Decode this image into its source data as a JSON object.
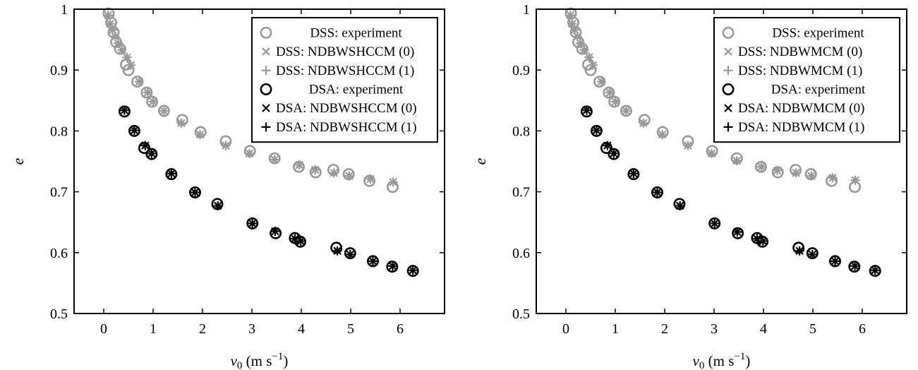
{
  "chart_data": [
    {
      "type": "scatter",
      "xlabel": "v",
      "xlabel_sub": "0",
      "xlabel_unit_open": " (m s",
      "xlabel_unit_sup": "−1",
      "xlabel_unit_close": ")",
      "ylabel": "e",
      "xlim": [
        -0.6,
        6.9
      ],
      "ylim": [
        0.5,
        1.0
      ],
      "xticks": [
        0,
        1,
        2,
        3,
        4,
        5,
        6
      ],
      "yticks": [
        0.5,
        0.6,
        0.7,
        0.8,
        0.9,
        1.0
      ],
      "xtick_labels": [
        "0",
        "1",
        "2",
        "3",
        "4",
        "5",
        "6"
      ],
      "ytick_labels": [
        "0.5",
        "0.6",
        "0.7",
        "0.8",
        "0.9",
        "1"
      ],
      "grid": false,
      "legend_position": "top-right",
      "series": [
        {
          "name": "DSS: experiment",
          "marker": "circle",
          "color": "#999999",
          "x": [
            0.1,
            0.15,
            0.2,
            0.25,
            0.33,
            0.45,
            0.5,
            0.68,
            0.87,
            0.98,
            1.22,
            1.59,
            1.96,
            2.47,
            2.96,
            3.46,
            3.95,
            4.29,
            4.65,
            4.96,
            5.38,
            5.85
          ],
          "y": [
            0.993,
            0.978,
            0.962,
            0.946,
            0.935,
            0.909,
            0.9,
            0.881,
            0.863,
            0.848,
            0.833,
            0.818,
            0.798,
            0.783,
            0.767,
            0.755,
            0.741,
            0.732,
            0.736,
            0.729,
            0.718,
            0.708
          ]
        },
        {
          "name": "DSS: NDBWSHCCM (0)",
          "marker": "x",
          "color": "#999999",
          "x": [
            0.09,
            0.13,
            0.18,
            0.23,
            0.29,
            0.37,
            0.47,
            0.55,
            0.72,
            0.89,
            1.0,
            1.22,
            1.57,
            1.95,
            2.47,
            2.95,
            3.46,
            3.96,
            4.28,
            4.66,
            4.97,
            5.4,
            5.86
          ],
          "y": [
            0.99,
            0.976,
            0.966,
            0.955,
            0.944,
            0.933,
            0.921,
            0.908,
            0.881,
            0.863,
            0.848,
            0.833,
            0.813,
            0.794,
            0.776,
            0.763,
            0.753,
            0.744,
            0.736,
            0.731,
            0.726,
            0.721,
            0.716
          ]
        },
        {
          "name": "DSS: NDBWSHCCM (1)",
          "marker": "plus",
          "color": "#999999",
          "x": [
            0.09,
            0.13,
            0.18,
            0.23,
            0.29,
            0.37,
            0.47,
            0.55,
            0.72,
            0.89,
            1.0,
            1.22,
            1.57,
            1.95,
            2.47,
            2.95,
            3.46,
            3.96,
            4.28,
            4.66,
            4.97,
            5.4,
            5.86
          ],
          "y": [
            0.99,
            0.976,
            0.966,
            0.955,
            0.944,
            0.933,
            0.921,
            0.908,
            0.881,
            0.863,
            0.848,
            0.833,
            0.813,
            0.794,
            0.776,
            0.763,
            0.753,
            0.744,
            0.736,
            0.731,
            0.726,
            0.721,
            0.716
          ]
        },
        {
          "name": "DSA: experiment",
          "marker": "circle",
          "color": "#000000",
          "x": [
            0.42,
            0.62,
            0.82,
            0.97,
            1.37,
            1.85,
            2.3,
            3.01,
            3.48,
            3.87,
            3.98,
            4.71,
            4.99,
            5.45,
            5.84,
            6.26
          ],
          "y": [
            0.832,
            0.8,
            0.772,
            0.762,
            0.729,
            0.699,
            0.68,
            0.648,
            0.632,
            0.624,
            0.618,
            0.608,
            0.599,
            0.586,
            0.577,
            0.57
          ]
        },
        {
          "name": "DSA: NDBWSHCCM (0)",
          "marker": "x",
          "color": "#000000",
          "x": [
            0.42,
            0.62,
            0.84,
            0.97,
            1.37,
            1.85,
            2.31,
            3.01,
            3.47,
            3.87,
            3.99,
            4.73,
            4.99,
            5.45,
            5.85,
            6.26
          ],
          "y": [
            0.834,
            0.801,
            0.776,
            0.763,
            0.73,
            0.699,
            0.677,
            0.648,
            0.635,
            0.623,
            0.619,
            0.603,
            0.597,
            0.586,
            0.578,
            0.571
          ]
        },
        {
          "name": "DSA: NDBWSHCCM (1)",
          "marker": "plus",
          "color": "#000000",
          "x": [
            0.42,
            0.62,
            0.84,
            0.97,
            1.37,
            1.85,
            2.31,
            3.01,
            3.47,
            3.87,
            3.99,
            4.73,
            4.99,
            5.45,
            5.85,
            6.26
          ],
          "y": [
            0.834,
            0.801,
            0.776,
            0.763,
            0.73,
            0.699,
            0.677,
            0.648,
            0.635,
            0.623,
            0.619,
            0.603,
            0.597,
            0.586,
            0.578,
            0.571
          ]
        }
      ]
    },
    {
      "type": "scatter",
      "xlabel": "v",
      "xlabel_sub": "0",
      "xlabel_unit_open": " (m s",
      "xlabel_unit_sup": "−1",
      "xlabel_unit_close": ")",
      "ylabel": "e",
      "xlim": [
        -0.6,
        6.9
      ],
      "ylim": [
        0.5,
        1.0
      ],
      "xticks": [
        0,
        1,
        2,
        3,
        4,
        5,
        6
      ],
      "yticks": [
        0.5,
        0.6,
        0.7,
        0.8,
        0.9,
        1.0
      ],
      "xtick_labels": [
        "0",
        "1",
        "2",
        "3",
        "4",
        "5",
        "6"
      ],
      "ytick_labels": [
        "0.5",
        "0.6",
        "0.7",
        "0.8",
        "0.9",
        "1"
      ],
      "grid": false,
      "legend_position": "top-right",
      "series": [
        {
          "name": "DSS: experiment",
          "marker": "circle",
          "color": "#999999",
          "x": [
            0.1,
            0.15,
            0.2,
            0.25,
            0.33,
            0.45,
            0.5,
            0.68,
            0.87,
            0.98,
            1.22,
            1.59,
            1.96,
            2.47,
            2.96,
            3.46,
            3.95,
            4.29,
            4.65,
            4.96,
            5.38,
            5.85
          ],
          "y": [
            0.993,
            0.978,
            0.962,
            0.946,
            0.935,
            0.909,
            0.9,
            0.881,
            0.863,
            0.848,
            0.833,
            0.818,
            0.798,
            0.783,
            0.767,
            0.755,
            0.741,
            0.732,
            0.736,
            0.729,
            0.718,
            0.708
          ]
        },
        {
          "name": "DSS: NDBWMCM (0)",
          "marker": "x",
          "color": "#999999",
          "x": [
            0.09,
            0.13,
            0.18,
            0.23,
            0.29,
            0.37,
            0.47,
            0.55,
            0.72,
            0.89,
            1.0,
            1.22,
            1.57,
            1.95,
            2.47,
            2.95,
            3.46,
            3.96,
            4.28,
            4.66,
            4.97,
            5.4,
            5.86
          ],
          "y": [
            0.99,
            0.976,
            0.966,
            0.955,
            0.944,
            0.933,
            0.921,
            0.908,
            0.881,
            0.863,
            0.848,
            0.833,
            0.813,
            0.794,
            0.776,
            0.763,
            0.751,
            0.741,
            0.735,
            0.731,
            0.726,
            0.723,
            0.719
          ]
        },
        {
          "name": "DSS: NDBWMCM (1)",
          "marker": "plus",
          "color": "#999999",
          "x": [
            0.09,
            0.13,
            0.18,
            0.23,
            0.29,
            0.37,
            0.47,
            0.55,
            0.72,
            0.89,
            1.0,
            1.22,
            1.57,
            1.95,
            2.47,
            2.95,
            3.46,
            3.96,
            4.28,
            4.66,
            4.97,
            5.4,
            5.86
          ],
          "y": [
            0.99,
            0.976,
            0.966,
            0.955,
            0.944,
            0.933,
            0.921,
            0.908,
            0.881,
            0.863,
            0.848,
            0.833,
            0.813,
            0.794,
            0.776,
            0.763,
            0.751,
            0.741,
            0.735,
            0.731,
            0.726,
            0.723,
            0.719
          ]
        },
        {
          "name": "DSA: experiment",
          "marker": "circle",
          "color": "#000000",
          "x": [
            0.42,
            0.62,
            0.82,
            0.97,
            1.37,
            1.85,
            2.3,
            3.01,
            3.48,
            3.87,
            3.98,
            4.71,
            4.99,
            5.45,
            5.84,
            6.26
          ],
          "y": [
            0.832,
            0.8,
            0.772,
            0.762,
            0.729,
            0.699,
            0.68,
            0.648,
            0.632,
            0.624,
            0.618,
            0.608,
            0.599,
            0.586,
            0.577,
            0.57
          ]
        },
        {
          "name": "DSA: NDBWMCM (0)",
          "marker": "x",
          "color": "#000000",
          "x": [
            0.42,
            0.62,
            0.84,
            0.97,
            1.37,
            1.85,
            2.31,
            3.01,
            3.47,
            3.87,
            3.99,
            4.73,
            4.99,
            5.45,
            5.85,
            6.26
          ],
          "y": [
            0.834,
            0.801,
            0.776,
            0.763,
            0.73,
            0.699,
            0.677,
            0.648,
            0.634,
            0.623,
            0.619,
            0.603,
            0.597,
            0.586,
            0.578,
            0.571
          ]
        },
        {
          "name": "DSA: NDBWMCM (1)",
          "marker": "plus",
          "color": "#000000",
          "x": [
            0.42,
            0.62,
            0.84,
            0.97,
            1.37,
            1.85,
            2.31,
            3.01,
            3.47,
            3.87,
            3.99,
            4.73,
            4.99,
            5.45,
            5.85,
            6.26
          ],
          "y": [
            0.834,
            0.801,
            0.776,
            0.763,
            0.73,
            0.699,
            0.677,
            0.648,
            0.634,
            0.623,
            0.619,
            0.603,
            0.597,
            0.586,
            0.578,
            0.571
          ]
        }
      ]
    }
  ]
}
